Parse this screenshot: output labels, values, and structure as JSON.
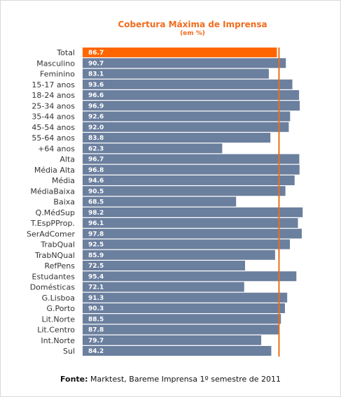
{
  "chart_data": {
    "type": "bar",
    "orientation": "horizontal",
    "title": "Cobertura Máxima de Imprensa",
    "subtitle": "(em %)",
    "categories": [
      "Total",
      "Masculino",
      "Feminino",
      "15-17 anos",
      "18-24 anos",
      "25-34 anos",
      "35-44 anos",
      "45-54 anos",
      "55-64 anos",
      "+64 anos",
      "Alta",
      "Média Alta",
      "Média",
      "MédiaBaixa",
      "Baixa",
      "Q.MédSup",
      "T.EspPProp.",
      "SerAdComer",
      "TrabQual",
      "TrabNQual",
      "RefPens",
      "Estudantes",
      "Domésticas",
      "G.Lisboa",
      "G.Porto",
      "Lit.Norte",
      "Lit.Centro",
      "Int.Norte",
      "Sul"
    ],
    "values": [
      86.7,
      90.7,
      83.1,
      93.6,
      96.6,
      96.9,
      92.6,
      92.0,
      83.8,
      62.3,
      96.7,
      96.8,
      94.6,
      90.5,
      68.5,
      98.2,
      96.1,
      97.8,
      92.5,
      85.9,
      72.5,
      95.4,
      72.1,
      91.3,
      90.3,
      88.5,
      87.8,
      79.7,
      84.2
    ],
    "value_labels": [
      "86.7",
      "90.7",
      "83.1",
      "93.6",
      "96.6",
      "96.9",
      "92.6",
      "92.0",
      "83.8",
      "62.3",
      "96.7",
      "96.8",
      "94.6",
      "90.5",
      "68.5",
      "98.2",
      "96.1",
      "97.8",
      "92.5",
      "85.9",
      "72.5",
      "95.4",
      "72.1",
      "91.3",
      "90.3",
      "88.5",
      "87.8",
      "79.7",
      "84.2"
    ],
    "highlight_category": "Total",
    "reference_line_value": 86.7,
    "xlim": [
      0,
      100
    ],
    "grid": false,
    "colors": {
      "bar": "#6b7f9e",
      "highlight": "#ff6600",
      "reference_line": "#e8701a",
      "title": "#f26b1d"
    }
  },
  "source": {
    "label": "Fonte:",
    "text": " Marktest, Bareme Imprensa 1º semestre de 2011"
  }
}
